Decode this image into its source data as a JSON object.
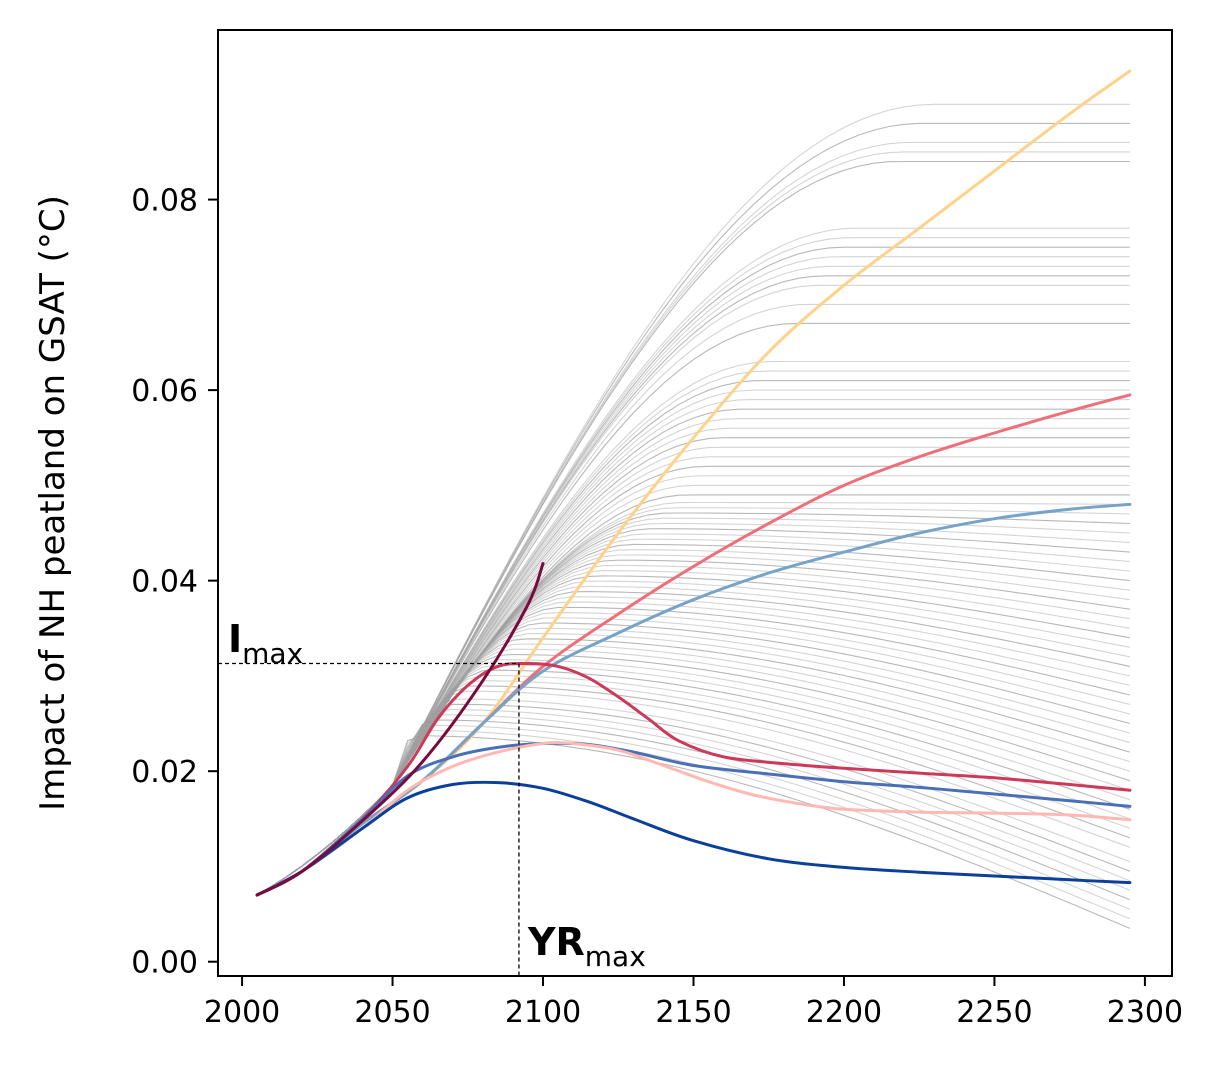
{
  "chart_data": {
    "type": "line",
    "title": "",
    "xlabel": "",
    "ylabel": "Impact of NH peatland on GSAT (°C)",
    "xlim": [
      1992,
      2309
    ],
    "ylim": [
      -0.0015,
      0.0978
    ],
    "xticks": [
      2000,
      2050,
      2100,
      2150,
      2200,
      2250,
      2300
    ],
    "yticks": [
      0.0,
      0.02,
      0.04,
      0.06,
      0.08
    ],
    "ytick_labels": [
      "0.00",
      "0.02",
      "0.04",
      "0.06",
      "0.08"
    ],
    "grid": false,
    "legend": "none",
    "ensemble": {
      "description_note": "",
      "x_start": 2005,
      "x_end": 2295,
      "color": "#a0a0a0",
      "final_values": [
        0.0035,
        0.0045,
        0.0055,
        0.0065,
        0.0075,
        0.0085,
        0.0095,
        0.0105,
        0.012,
        0.013,
        0.014,
        0.015,
        0.016,
        0.017,
        0.018,
        0.019,
        0.02,
        0.021,
        0.022,
        0.023,
        0.024,
        0.025,
        0.026,
        0.027,
        0.028,
        0.029,
        0.03,
        0.031,
        0.032,
        0.033,
        0.034,
        0.035,
        0.036,
        0.037,
        0.038,
        0.039,
        0.04,
        0.041,
        0.042,
        0.043,
        0.044,
        0.045,
        0.046,
        0.047,
        0.048,
        0.049,
        0.05,
        0.051,
        0.052,
        0.053,
        0.054,
        0.055,
        0.056,
        0.057,
        0.058,
        0.059,
        0.06,
        0.061,
        0.062,
        0.063,
        0.067,
        0.069,
        0.071,
        0.072,
        0.073,
        0.074,
        0.075,
        0.076,
        0.077,
        0.084,
        0.085,
        0.086,
        0.088,
        0.09
      ]
    },
    "series": [
      {
        "color": "#ffd28a",
        "x": [
          2005,
          2020,
          2040,
          2060,
          2080,
          2100,
          2125,
          2150,
          2175,
          2200,
          2225,
          2250,
          2275,
          2295
        ],
        "y": [
          0.007,
          0.0095,
          0.0145,
          0.019,
          0.025,
          0.034,
          0.045,
          0.055,
          0.064,
          0.071,
          0.077,
          0.083,
          0.089,
          0.0935
        ]
      },
      {
        "color": "#ee6f7a",
        "x": [
          2005,
          2020,
          2040,
          2060,
          2080,
          2100,
          2125,
          2150,
          2175,
          2200,
          2225,
          2250,
          2275,
          2295
        ],
        "y": [
          0.007,
          0.0095,
          0.0145,
          0.019,
          0.025,
          0.031,
          0.0365,
          0.0415,
          0.046,
          0.05,
          0.053,
          0.0555,
          0.0578,
          0.0595
        ]
      },
      {
        "color": "#76a3c8",
        "x": [
          2005,
          2020,
          2040,
          2060,
          2080,
          2100,
          2125,
          2150,
          2175,
          2200,
          2225,
          2250,
          2275,
          2295
        ],
        "y": [
          0.007,
          0.0095,
          0.0145,
          0.019,
          0.025,
          0.0305,
          0.0345,
          0.038,
          0.0408,
          0.043,
          0.045,
          0.0465,
          0.0475,
          0.048
        ]
      },
      {
        "color": "#cc3a5b",
        "x": [
          2005,
          2020,
          2040,
          2055,
          2065,
          2075,
          2085,
          2095,
          2105,
          2115,
          2125,
          2135,
          2145,
          2160,
          2180,
          2200,
          2225,
          2250,
          2275,
          2295
        ],
        "y": [
          0.007,
          0.0095,
          0.015,
          0.0205,
          0.0255,
          0.029,
          0.031,
          0.0313,
          0.031,
          0.0298,
          0.0278,
          0.0255,
          0.0232,
          0.0215,
          0.0208,
          0.0203,
          0.0198,
          0.0193,
          0.0186,
          0.018
        ]
      },
      {
        "color": "#4a6fb5",
        "x": [
          2005,
          2020,
          2040,
          2055,
          2070,
          2085,
          2100,
          2115,
          2130,
          2150,
          2175,
          2200,
          2225,
          2250,
          2275,
          2295
        ],
        "y": [
          0.007,
          0.0095,
          0.015,
          0.0195,
          0.0215,
          0.0225,
          0.0229,
          0.0228,
          0.022,
          0.0206,
          0.0197,
          0.0189,
          0.0183,
          0.0176,
          0.0169,
          0.0163
        ]
      },
      {
        "color": "#ffb8b2",
        "x": [
          2005,
          2020,
          2040,
          2055,
          2070,
          2085,
          2100,
          2110,
          2125,
          2140,
          2155,
          2170,
          2185,
          2200,
          2225,
          2250,
          2275,
          2295
        ],
        "y": [
          0.007,
          0.0095,
          0.014,
          0.018,
          0.0205,
          0.022,
          0.0229,
          0.0229,
          0.0222,
          0.0206,
          0.0189,
          0.0175,
          0.0166,
          0.016,
          0.0157,
          0.0156,
          0.0154,
          0.0149
        ]
      },
      {
        "color": "#0a3f9a",
        "x": [
          2005,
          2020,
          2040,
          2055,
          2070,
          2085,
          2100,
          2115,
          2130,
          2150,
          2175,
          2200,
          2225,
          2250,
          2275,
          2295
        ],
        "y": [
          0.007,
          0.0095,
          0.014,
          0.0172,
          0.0186,
          0.0188,
          0.0182,
          0.0168,
          0.015,
          0.0127,
          0.0108,
          0.0099,
          0.0094,
          0.009,
          0.0086,
          0.0083
        ]
      },
      {
        "color": "#7a0a3c",
        "x": [
          2005,
          2020,
          2040,
          2060,
          2080,
          2095,
          2100
        ],
        "y": [
          0.007,
          0.0095,
          0.0148,
          0.021,
          0.0295,
          0.0375,
          0.0418
        ]
      }
    ],
    "annotations": {
      "imax": {
        "label_main": "I",
        "label_sub": "max",
        "value": 0.0313
      },
      "yrmax": {
        "label_main": "YR",
        "label_sub": "max",
        "year": 2092
      }
    }
  }
}
